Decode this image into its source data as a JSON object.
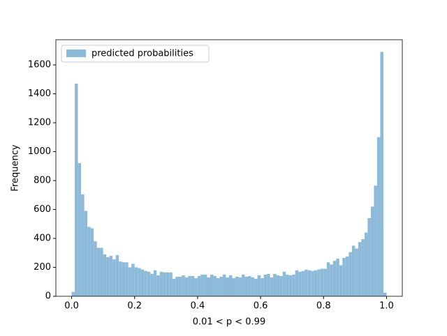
{
  "chart_data": {
    "type": "histogram",
    "xlabel": "0.01 < p < 0.99",
    "ylabel": "Frequency",
    "bins": [
      0,
      0.01,
      0.02,
      0.03,
      0.04,
      0.05,
      0.06,
      0.07,
      0.08,
      0.09,
      0.1,
      0.11,
      0.12,
      0.13,
      0.14,
      0.15,
      0.16,
      0.17,
      0.18,
      0.19,
      0.2,
      0.21,
      0.22,
      0.23,
      0.24,
      0.25,
      0.26,
      0.27,
      0.28,
      0.29,
      0.3,
      0.31,
      0.32,
      0.33,
      0.34,
      0.35,
      0.36,
      0.37,
      0.38,
      0.39,
      0.4,
      0.41,
      0.42,
      0.43,
      0.44,
      0.45,
      0.46,
      0.47,
      0.48,
      0.49,
      0.5,
      0.51,
      0.52,
      0.53,
      0.54,
      0.55,
      0.56,
      0.57,
      0.58,
      0.59,
      0.6,
      0.61,
      0.62,
      0.63,
      0.64,
      0.65,
      0.66,
      0.67,
      0.68,
      0.69,
      0.7,
      0.71,
      0.72,
      0.73,
      0.74,
      0.75,
      0.76,
      0.77,
      0.78,
      0.79,
      0.8,
      0.81,
      0.82,
      0.83,
      0.84,
      0.85,
      0.86,
      0.87,
      0.88,
      0.89,
      0.9,
      0.91,
      0.92,
      0.93,
      0.94,
      0.95,
      0.96,
      0.97,
      0.98,
      0.99,
      1
    ],
    "series": [
      {
        "name": "predicted probabilities",
        "color": "#8ebad9",
        "values": [
          30,
          1470,
          920,
          705,
          590,
          480,
          470,
          380,
          335,
          335,
          290,
          270,
          280,
          255,
          285,
          240,
          235,
          235,
          200,
          225,
          200,
          195,
          185,
          175,
          170,
          155,
          180,
          145,
          170,
          165,
          165,
          165,
          120,
          135,
          135,
          145,
          130,
          140,
          140,
          125,
          140,
          150,
          150,
          130,
          150,
          140,
          125,
          135,
          150,
          130,
          145,
          125,
          135,
          130,
          150,
          135,
          140,
          130,
          120,
          145,
          125,
          150,
          155,
          130,
          155,
          145,
          140,
          170,
          150,
          145,
          150,
          180,
          170,
          175,
          185,
          180,
          175,
          180,
          185,
          190,
          190,
          235,
          220,
          245,
          260,
          215,
          265,
          275,
          305,
          350,
          330,
          375,
          395,
          440,
          540,
          620,
          765,
          1100,
          1690,
          25
        ]
      }
    ],
    "xlim": [
      -0.05,
      1.05
    ],
    "ylim": [
      0,
      1774
    ],
    "xticks": [
      {
        "value": 0,
        "label": "0.0"
      },
      0.2,
      0.4,
      0.6,
      0.8,
      {
        "value": 1,
        "label": "1.0"
      }
    ],
    "yticks": [
      0,
      200,
      400,
      600,
      800,
      1000,
      1200,
      1400,
      1600
    ],
    "legend": "upper left"
  }
}
